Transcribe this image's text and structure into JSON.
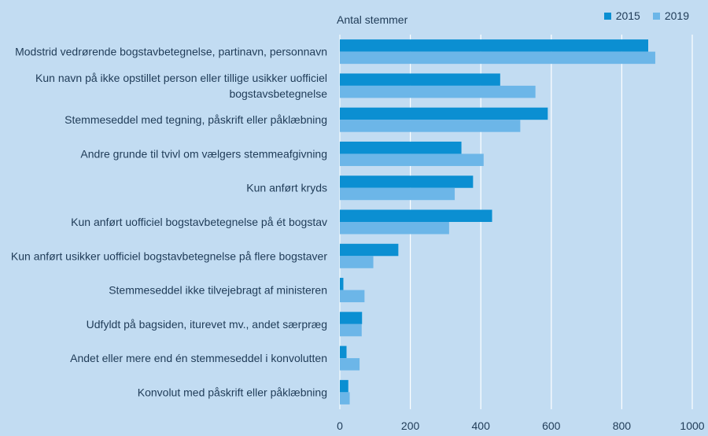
{
  "chart_data": {
    "type": "bar",
    "orientation": "horizontal",
    "xlabel": "Antal stemmer",
    "xlim": [
      0,
      1000
    ],
    "xticks": [
      0,
      200,
      400,
      600,
      800,
      1000
    ],
    "grid": true,
    "legend_position": "top-right",
    "categories": [
      "Modstrid vedrørende bogstavbetegnelse, partinavn, personnavn",
      "Kun navn på ikke opstillet person eller tillige usikker uofficiel bogstavsbetegnelse",
      "Stemmeseddel med tegning, påskrift eller påklæbning",
      "Andre grunde til tvivl om vælgers stemmeafgivning",
      "Kun anført kryds",
      "Kun anført uofficiel bogstavbetegnelse på ét bogstav",
      "Kun anført usikker uofficiel bogstavbetegnelse på flere bogstaver",
      "Stemmeseddel ikke tilvejebragt af ministeren",
      "Udfyldt på bagsiden, iturevet mv., andet særpræg",
      "Andet eller mere end én stemmeseddel i konvolutten",
      "Konvolut med påskrift eller påklæbning"
    ],
    "category_lines": [
      [
        "Modstrid vedrørende bogstavbetegnelse, partinavn, personnavn"
      ],
      [
        "Kun navn på ikke opstillet person eller tillige usikker uofficiel",
        "bogstavsbetegnelse"
      ],
      [
        "Stemmeseddel med tegning, påskrift eller påklæbning"
      ],
      [
        "Andre grunde til tvivl om vælgers stemmeafgivning"
      ],
      [
        "Kun anført kryds"
      ],
      [
        "Kun anført uofficiel bogstavbetegnelse på ét bogstav"
      ],
      [
        "Kun anført usikker uofficiel bogstavbetegnelse på flere bogstaver"
      ],
      [
        "Stemmeseddel ikke tilvejebragt af ministeren"
      ],
      [
        "Udfyldt på bagsiden, iturevet mv., andet særpræg"
      ],
      [
        "Andet eller mere end én stemmeseddel i konvolutten"
      ],
      [
        "Konvolut med påskrift eller påklæbning"
      ]
    ],
    "series": [
      {
        "name": "2015",
        "color": "#0b8fd2",
        "values": [
          875,
          455,
          590,
          345,
          378,
          432,
          166,
          10,
          63,
          19,
          24
        ]
      },
      {
        "name": "2019",
        "color": "#6cb6e8",
        "values": [
          895,
          555,
          512,
          408,
          326,
          310,
          95,
          70,
          62,
          56,
          28
        ]
      }
    ]
  }
}
